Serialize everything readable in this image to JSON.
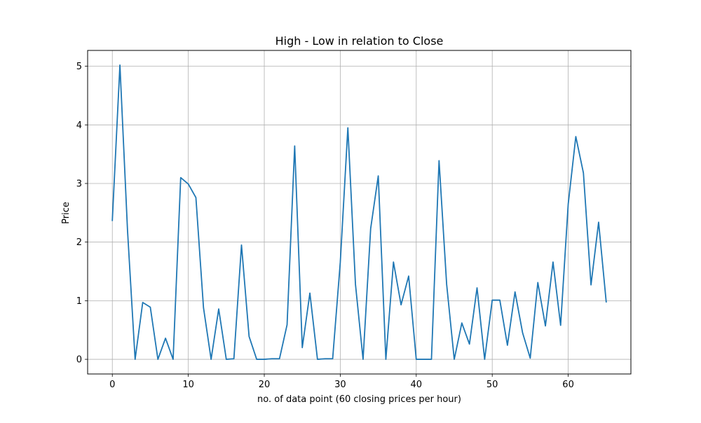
{
  "chart_data": {
    "type": "line",
    "title": "High - Low in relation to Close",
    "xlabel": "no. of data point (60 closing prices per hour)",
    "ylabel": "Price",
    "xlim": [
      -3.25,
      68.25
    ],
    "ylim": [
      -0.25,
      5.27
    ],
    "x_ticks": [
      0,
      10,
      20,
      30,
      40,
      50,
      60
    ],
    "y_ticks": [
      0,
      1,
      2,
      3,
      4,
      5
    ],
    "grid": true,
    "series": [
      {
        "color": "#1f77b4",
        "x": [
          0,
          1,
          2,
          3,
          4,
          5,
          6,
          7,
          8,
          9,
          10,
          11,
          12,
          13,
          14,
          15,
          16,
          17,
          18,
          19,
          20,
          21,
          22,
          23,
          24,
          25,
          26,
          27,
          28,
          29,
          30,
          31,
          32,
          33,
          34,
          35,
          36,
          37,
          38,
          39,
          40,
          41,
          42,
          43,
          44,
          45,
          46,
          47,
          48,
          49,
          50,
          51,
          52,
          53,
          54,
          55,
          56,
          57,
          58,
          59,
          60,
          61,
          62,
          63,
          64,
          65
        ],
        "values": [
          2.37,
          5.02,
          2.2,
          0.0,
          0.97,
          0.89,
          0.0,
          0.36,
          0.0,
          3.1,
          2.99,
          2.76,
          0.88,
          0.0,
          0.86,
          0.0,
          0.01,
          1.95,
          0.39,
          0.0,
          0.0,
          0.01,
          0.01,
          0.59,
          3.64,
          0.2,
          1.13,
          0.0,
          0.01,
          0.01,
          1.65,
          3.95,
          1.28,
          0.0,
          2.23,
          3.13,
          0.0,
          1.66,
          0.93,
          1.42,
          0.0,
          0.0,
          0.0,
          3.39,
          1.28,
          0.0,
          0.62,
          0.26,
          1.22,
          0.0,
          1.01,
          1.01,
          0.24,
          1.15,
          0.45,
          0.02,
          1.31,
          0.57,
          1.66,
          0.58,
          2.65,
          3.8,
          3.18,
          1.27,
          2.34,
          0.98
        ]
      }
    ]
  }
}
